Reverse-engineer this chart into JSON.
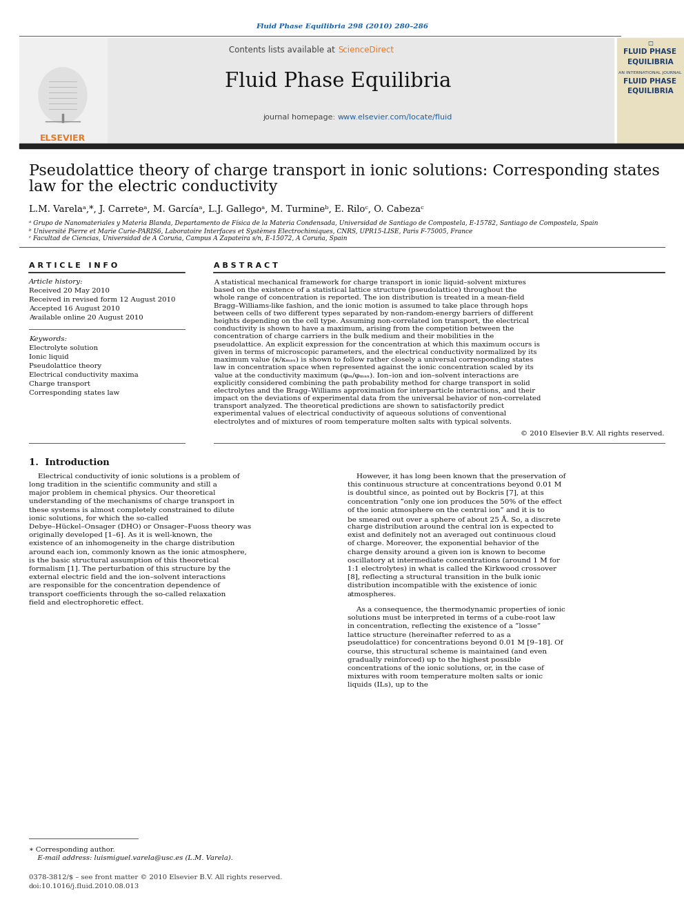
{
  "page_bg": "#ffffff",
  "accent_blue": "#1a5fa8",
  "elsevier_orange": "#e87722",
  "journal_cover_bg": "#e8e0c0",
  "journal_cover_text_color": "#1a3a6b",
  "top_journal_text": "Fluid Phase Equilibria 298 (2010) 280–286",
  "contents_text": "Contents lists available at",
  "science_direct_text": "ScienceDirect",
  "journal_name": "Fluid Phase Equilibria",
  "journal_homepage_label": "journal homepage: ",
  "journal_homepage_url": "www.elsevier.com/locate/fluid",
  "title_line1": "Pseudolattice theory of charge transport in ionic solutions: Corresponding states",
  "title_line2": "law for the electric conductivity",
  "authors": "L.M. Varelaᵃ,*, J. Carreteᵃ, M. Garcíaᵃ, L.J. Gallegoᵃ, M. Turmineᵇ, E. Riloᶜ, O. Cabezaᶜ",
  "affil_a": "ᵃ Grupo de Nanomateriales y Materia Blanda, Departamento de Física de la Materia Condensada, Universidad de Santiago de Compostela, E-15782, Santiago de Compostela, Spain",
  "affil_b": "ᵇ Université Pierre et Marie Curie-PARIS6, Laboratoire Interfaces et Systèmes Electrochimiques, CNRS, UPR15-LISE, Paris F-75005, France",
  "affil_c": "ᶜ Facultad de Ciencias, Universidad de A Coruña, Campus A Zapateira s/n, E-15072, A Coruña, Spain",
  "article_info_title": "A R T I C L E   I N F O",
  "abstract_title": "A B S T R A C T",
  "article_history_title": "Article history:",
  "received": "Received 20 May 2010",
  "received_revised": "Received in revised form 12 August 2010",
  "accepted": "Accepted 16 August 2010",
  "available": "Available online 20 August 2010",
  "keywords_title": "Keywords:",
  "keywords": [
    "Electrolyte solution",
    "Ionic liquid",
    "Pseudolattice theory",
    "Electrical conductivity maxima",
    "Charge transport",
    "Corresponding states law"
  ],
  "abstract_text": "A statistical mechanical framework for charge transport in ionic liquid–solvent mixtures based on the existence of a statistical lattice structure (pseudolattice) throughout the whole range of concentration is reported. The ion distribution is treated in a mean-field Bragg–Williams-like fashion, and the ionic motion is assumed to take place through hops between cells of two different types separated by non-random-energy barriers of different heights depending on the cell type. Assuming non-correlated ion transport, the electrical conductivity is shown to have a maximum, arising from the competition between the concentration of charge carriers in the bulk medium and their mobilities in the pseudolattice. An explicit expression for the concentration at which this maximum occurs is given in terms of microscopic parameters, and the electrical conductivity normalized by its maximum value (κ/κₘₐₓ) is shown to follow rather closely a universal corresponding states law in concentration space when represented against the ionic concentration scaled by its value at the conductivity maximum (φₘ/φₘₐₓ). Ion–ion and ion–solvent interactions are explicitly considered combining the path probability method for charge transport in solid electrolytes and the Bragg–Williams approximation for interparticle interactions, and their impact on the deviations of experimental data from the universal behavior of non-correlated transport analyzed. The theoretical predictions are shown to satisfactorily predict experimental values of electrical conductivity of aqueous solutions of conventional electrolytes and of mixtures of room temperature molten salts with typical solvents.",
  "copyright_text": "© 2010 Elsevier B.V. All rights reserved.",
  "section1_title": "1.  Introduction",
  "intro_col1": "Electrical conductivity of ionic solutions is a problem of long tradition in the scientific community and still a major problem in chemical physics. Our theoretical understanding of the mechanisms of charge transport in these systems is almost completely constrained to dilute ionic solutions, for which the so-called Debye–Hückel–Onsager (DHO) or Onsager–Fuoss theory was originally developed [1–6]. As it is well-known, the existence of an inhomogeneity in the charge distribution around each ion, commonly known as the ionic atmosphere, is the basic structural assumption of this theoretical formalism [1]. The perturbation of this structure by the external electric field and the ion–solvent interactions are responsible for the concentration dependence of transport coefficients through the so-called relaxation field and electrophoretic effect.",
  "intro_col2": "However, it has long been known that the preservation of this continuous structure at concentrations beyond 0.01 M is doubtful since, as pointed out by Bockris [7], at this concentration “only one ion produces the 50% of the effect of the ionic atmosphere on the central ion” and it is to be smeared out over a sphere of about 25 Å. So, a discrete charge distribution around the central ion is expected to exist and definitely not an averaged out continuous cloud of charge. Moreover, the exponential behavior of the charge density around a given ion is known to become oscillatory at intermediate concentrations (around 1 M for 1:1 electrolytes) in what is called the Kirkwood crossover [8], reflecting a structural transition in the bulk ionic distribution incompatible with the existence of ionic atmospheres.\n\nAs a consequence, the thermodynamic properties of ionic solutions must be interpreted in terms of a cube-root law in concentration, reflecting the existence of a “losse” lattice structure (hereinafter referred to as a pseudolattice) for concentrations beyond 0.01 M [9–18]. Of course, this structural scheme is maintained (and even gradually reinforced) up to the highest possible concentrations of the ionic solutions, or, in the case of mixtures with room temperature molten salts or ionic liquids (ILs), up to the",
  "footnote_star": "∗ Corresponding author.",
  "footnote_email": "E-mail address: luismiguel.varela@usc.es (L.M. Varela).",
  "footer_issn": "0378-3812/$ – see front matter © 2010 Elsevier B.V. All rights reserved.",
  "footer_doi": "doi:10.1016/j.fluid.2010.08.013",
  "cover_lines": [
    "FLUID PHASE",
    "EQUILIBRIA",
    "AN INTERNATIONAL JOURNAL",
    "FLUID PHASE",
    "EQUILIBRIA"
  ]
}
